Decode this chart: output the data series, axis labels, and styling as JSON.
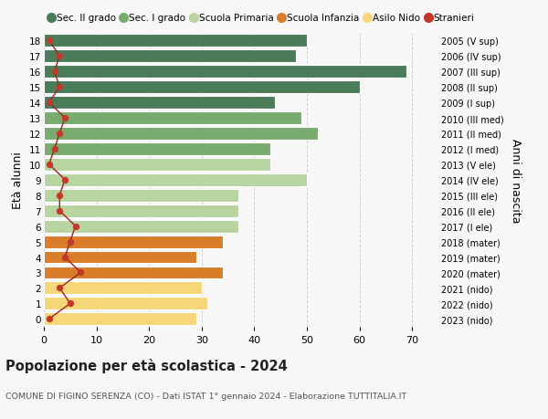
{
  "ages": [
    18,
    17,
    16,
    15,
    14,
    13,
    12,
    11,
    10,
    9,
    8,
    7,
    6,
    5,
    4,
    3,
    2,
    1,
    0
  ],
  "right_labels": [
    "2005 (V sup)",
    "2006 (IV sup)",
    "2007 (III sup)",
    "2008 (II sup)",
    "2009 (I sup)",
    "2010 (III med)",
    "2011 (II med)",
    "2012 (I med)",
    "2013 (V ele)",
    "2014 (IV ele)",
    "2015 (III ele)",
    "2016 (II ele)",
    "2017 (I ele)",
    "2018 (mater)",
    "2019 (mater)",
    "2020 (mater)",
    "2021 (nido)",
    "2022 (nido)",
    "2023 (nido)"
  ],
  "bar_values": [
    50,
    48,
    69,
    60,
    44,
    49,
    52,
    43,
    43,
    50,
    37,
    37,
    37,
    34,
    29,
    34,
    30,
    31,
    29
  ],
  "stranieri_values": [
    1,
    3,
    2,
    3,
    1,
    4,
    3,
    2,
    1,
    4,
    3,
    3,
    6,
    5,
    4,
    7,
    3,
    5,
    1
  ],
  "bar_colors": [
    "#4a7c59",
    "#4a7c59",
    "#4a7c59",
    "#4a7c59",
    "#4a7c59",
    "#7aab6e",
    "#7aab6e",
    "#7aab6e",
    "#b8d4a0",
    "#b8d4a0",
    "#b8d4a0",
    "#b8d4a0",
    "#b8d4a0",
    "#d97d2a",
    "#d97d2a",
    "#d97d2a",
    "#f5d77a",
    "#f5d77a",
    "#f5d77a"
  ],
  "legend_labels": [
    "Sec. II grado",
    "Sec. I grado",
    "Scuola Primaria",
    "Scuola Infanzia",
    "Asilo Nido",
    "Stranieri"
  ],
  "legend_colors": [
    "#4a7c59",
    "#7aab6e",
    "#b8d4a0",
    "#d97d2a",
    "#f5d77a",
    "#c0392b"
  ],
  "ylabel_left": "Età alunni",
  "ylabel_right": "Anni di nascita",
  "title": "Popolazione per età scolastica - 2024",
  "subtitle": "COMUNE DI FIGINO SERENZA (CO) - Dati ISTAT 1° gennaio 2024 - Elaborazione TUTTITALIA.IT",
  "xlim": [
    0,
    75
  ],
  "bg_color": "#f7f7f7",
  "grid_color": "#d0d0d0",
  "stranieri_color": "#c0392b",
  "line_color": "#9b2222"
}
